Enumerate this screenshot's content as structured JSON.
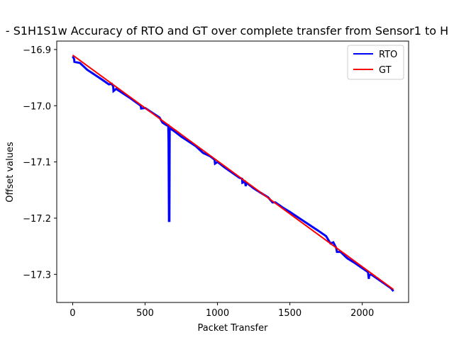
{
  "chart_data": {
    "type": "line",
    "title": "- S1H1S1w Accuracy of RTO and GT over complete transfer from Sensor1 to H",
    "xlabel": "Packet Transfer",
    "ylabel": "Offset values",
    "xlim": [
      -110,
      2320
    ],
    "ylim": [
      -17.35,
      -16.885
    ],
    "xticks": [
      0,
      500,
      1000,
      1500,
      2000
    ],
    "yticks": [
      -16.9,
      -17.0,
      -17.1,
      -17.2,
      -17.3
    ],
    "xtick_labels": [
      "0",
      "500",
      "1000",
      "1500",
      "2000"
    ],
    "ytick_labels": [
      "−16.9",
      "−17.0",
      "−17.1",
      "−17.2",
      "−17.3"
    ],
    "grid": false,
    "legend_position": "top-right",
    "series": [
      {
        "name": "RTO",
        "color": "#0000ff",
        "x": [
          0,
          10,
          12,
          50,
          100,
          200,
          250,
          270,
          280,
          282,
          300,
          400,
          470,
          473,
          500,
          600,
          620,
          650,
          660,
          662,
          665,
          668,
          670,
          700,
          750,
          850,
          900,
          950,
          980,
          983,
          1000,
          1050,
          1100,
          1150,
          1170,
          1172,
          1190,
          1195,
          1200,
          1250,
          1300,
          1350,
          1380,
          1400,
          1450,
          1500,
          1600,
          1700,
          1750,
          1780,
          1800,
          1820,
          1825,
          1850,
          1890,
          1900,
          1950,
          2000,
          2040,
          2045,
          2048,
          2060,
          2100,
          2150,
          2200,
          2215
        ],
        "y": [
          -16.912,
          -16.917,
          -16.922,
          -16.924,
          -16.936,
          -16.953,
          -16.962,
          -16.961,
          -16.966,
          -16.974,
          -16.97,
          -16.987,
          -17.0,
          -17.005,
          -17.004,
          -17.021,
          -17.03,
          -17.035,
          -17.035,
          -17.063,
          -17.205,
          -17.205,
          -17.04,
          -17.045,
          -17.055,
          -17.072,
          -17.084,
          -17.09,
          -17.096,
          -17.103,
          -17.1,
          -17.11,
          -17.119,
          -17.128,
          -17.13,
          -17.137,
          -17.135,
          -17.143,
          -17.137,
          -17.147,
          -17.155,
          -17.163,
          -17.172,
          -17.172,
          -17.181,
          -17.189,
          -17.206,
          -17.223,
          -17.232,
          -17.245,
          -17.243,
          -17.253,
          -17.26,
          -17.26,
          -17.27,
          -17.272,
          -17.28,
          -17.289,
          -17.296,
          -17.308,
          -17.302,
          -17.3,
          -17.307,
          -17.316,
          -17.325,
          -17.33
        ]
      },
      {
        "name": "GT",
        "color": "#ff0000",
        "x": [
          0,
          2215
        ],
        "y": [
          -16.91,
          -17.327
        ]
      }
    ]
  }
}
